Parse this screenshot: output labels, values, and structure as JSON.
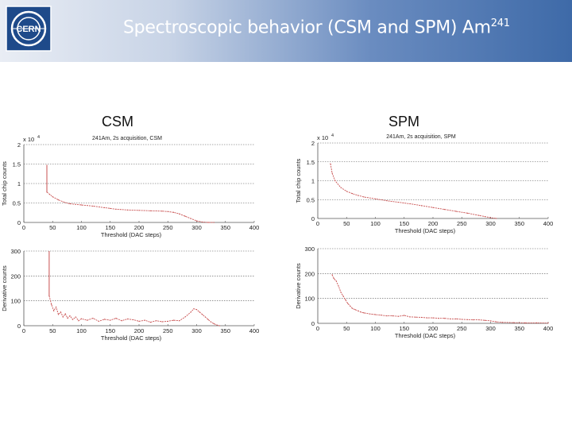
{
  "slide": {
    "title_main": "Spectroscopic behavior (CSM and SPM) Am",
    "title_sup": "241",
    "logo_text": "CERN"
  },
  "columns": {
    "left_label": "CSM",
    "right_label": "SPM"
  },
  "colors": {
    "series": "#c85050",
    "grid": "#555555",
    "axis": "#555555"
  },
  "chart_data": [
    {
      "id": "csm-total",
      "type": "line",
      "title": "241Am, 2s acquisition, CSM",
      "xlabel": "Threshold (DAC steps)",
      "ylabel": "Total chip counts",
      "multiplier_base": "x 10",
      "multiplier_exp": "4",
      "xlim": [
        0,
        400
      ],
      "ylim": [
        0,
        2
      ],
      "xticks": [
        0,
        50,
        100,
        150,
        200,
        250,
        300,
        350,
        400
      ],
      "yticks": [
        0,
        0.5,
        1,
        1.5,
        2
      ],
      "ytick_labels": [
        "0",
        "0.5",
        "1",
        "1.5",
        "2"
      ],
      "grid": true,
      "spike": {
        "x": 40,
        "y_from": 0.78,
        "y_to": 1.48
      },
      "x": [
        40,
        45,
        50,
        60,
        70,
        80,
        100,
        120,
        140,
        150,
        160,
        180,
        200,
        220,
        240,
        250,
        260,
        270,
        280,
        290,
        300,
        310,
        320,
        330
      ],
      "y": [
        0.78,
        0.72,
        0.66,
        0.58,
        0.52,
        0.48,
        0.45,
        0.42,
        0.38,
        0.36,
        0.34,
        0.32,
        0.31,
        0.3,
        0.29,
        0.28,
        0.26,
        0.22,
        0.16,
        0.1,
        0.04,
        0.01,
        0.0,
        0.0
      ]
    },
    {
      "id": "spm-total",
      "type": "line",
      "title": "241Am, 2s acquisition, SPM",
      "xlabel": "Threshold (DAC steps)",
      "ylabel": "Total chip counts",
      "multiplier_base": "x 10",
      "multiplier_exp": "4",
      "xlim": [
        0,
        400
      ],
      "ylim": [
        0,
        2
      ],
      "xticks": [
        0,
        50,
        100,
        150,
        200,
        250,
        300,
        350,
        400
      ],
      "yticks": [
        0,
        0.5,
        1,
        1.5,
        2
      ],
      "ytick_labels": [
        "0",
        "0.5",
        "1",
        "1.5",
        "2"
      ],
      "grid": true,
      "x": [
        22,
        25,
        30,
        40,
        50,
        60,
        70,
        80,
        100,
        120,
        140,
        160,
        180,
        200,
        220,
        240,
        260,
        280,
        290,
        300,
        310
      ],
      "y": [
        1.45,
        1.2,
        1.0,
        0.82,
        0.72,
        0.66,
        0.61,
        0.57,
        0.52,
        0.47,
        0.43,
        0.39,
        0.34,
        0.29,
        0.24,
        0.19,
        0.14,
        0.08,
        0.05,
        0.02,
        0.0
      ]
    },
    {
      "id": "csm-derivative",
      "type": "line",
      "title": "",
      "xlabel": "Threshold (DAC steps)",
      "ylabel": "Derivative counts",
      "xlim": [
        0,
        400
      ],
      "ylim": [
        0,
        300
      ],
      "xticks": [
        0,
        50,
        100,
        150,
        200,
        250,
        300,
        350,
        400
      ],
      "yticks": [
        0,
        100,
        200,
        300
      ],
      "ytick_labels": [
        "0",
        "100",
        "200",
        "300"
      ],
      "grid": true,
      "spike": {
        "x": 44,
        "y_from": 120,
        "y_to": 300
      },
      "x": [
        44,
        48,
        52,
        56,
        60,
        64,
        68,
        72,
        76,
        80,
        85,
        90,
        95,
        100,
        110,
        120,
        130,
        140,
        150,
        160,
        170,
        180,
        190,
        200,
        210,
        220,
        230,
        240,
        250,
        260,
        270,
        280,
        290,
        295,
        300,
        305,
        310,
        315,
        320,
        325,
        330,
        335,
        340
      ],
      "y": [
        120,
        85,
        60,
        75,
        45,
        55,
        35,
        48,
        30,
        40,
        25,
        35,
        20,
        28,
        22,
        30,
        18,
        26,
        22,
        30,
        20,
        27,
        24,
        18,
        22,
        14,
        20,
        16,
        18,
        22,
        20,
        35,
        55,
        68,
        65,
        55,
        45,
        35,
        25,
        15,
        8,
        3,
        0
      ]
    },
    {
      "id": "spm-derivative",
      "type": "line",
      "title": "",
      "xlabel": "Threshold (DAC steps)",
      "ylabel": "Derivative counts",
      "xlim": [
        0,
        400
      ],
      "ylim": [
        0,
        300
      ],
      "xticks": [
        0,
        50,
        100,
        150,
        200,
        250,
        300,
        350,
        400
      ],
      "yticks": [
        0,
        100,
        200,
        300
      ],
      "ytick_labels": [
        "0",
        "100",
        "200",
        "300"
      ],
      "grid": true,
      "x": [
        25,
        28,
        32,
        36,
        40,
        44,
        48,
        52,
        56,
        60,
        65,
        70,
        75,
        80,
        90,
        100,
        110,
        120,
        130,
        140,
        150,
        160,
        170,
        180,
        190,
        200,
        210,
        220,
        230,
        240,
        250,
        260,
        270,
        280,
        290,
        300,
        310,
        320,
        340,
        360,
        380,
        400
      ],
      "y": [
        195,
        180,
        170,
        150,
        125,
        110,
        95,
        80,
        70,
        60,
        55,
        50,
        45,
        42,
        38,
        35,
        33,
        30,
        30,
        28,
        32,
        26,
        25,
        24,
        22,
        22,
        20,
        20,
        18,
        18,
        16,
        15,
        14,
        14,
        12,
        10,
        6,
        4,
        3,
        2,
        2,
        1
      ]
    }
  ]
}
